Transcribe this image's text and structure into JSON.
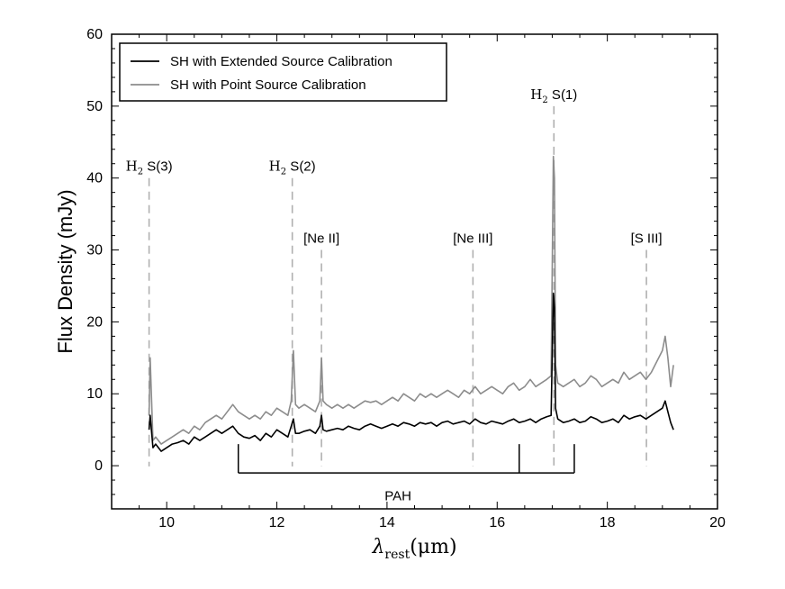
{
  "chart_data": {
    "type": "line",
    "title": "",
    "xlabel": {
      "main": "λ",
      "sub": "rest",
      "unit": "(μm)"
    },
    "ylabel": "Flux Density (mJy)",
    "xlim": [
      9,
      20
    ],
    "ylim": [
      -6,
      60
    ],
    "x_ticks": [
      10,
      12,
      14,
      16,
      18,
      20
    ],
    "y_ticks": [
      0,
      10,
      20,
      30,
      40,
      50,
      60
    ],
    "legend": {
      "placement": "top-left",
      "entries": [
        {
          "label": "SH with Extended Source Calibration",
          "color": "#000000"
        },
        {
          "label": "SH with Point Source Calibration",
          "color": "#8c8c8c"
        }
      ]
    },
    "series": [
      {
        "name": "SH with Extended Source Calibration",
        "color": "#000000",
        "x": [
          9.68,
          9.7,
          9.75,
          9.8,
          9.9,
          10.0,
          10.1,
          10.2,
          10.3,
          10.4,
          10.5,
          10.6,
          10.7,
          10.8,
          10.9,
          11.0,
          11.1,
          11.2,
          11.3,
          11.4,
          11.5,
          11.6,
          11.7,
          11.8,
          11.9,
          12.0,
          12.1,
          12.2,
          12.26,
          12.3,
          12.34,
          12.4,
          12.5,
          12.6,
          12.7,
          12.78,
          12.81,
          12.84,
          12.9,
          13.0,
          13.1,
          13.2,
          13.3,
          13.4,
          13.5,
          13.6,
          13.7,
          13.8,
          13.9,
          14.0,
          14.1,
          14.2,
          14.3,
          14.4,
          14.5,
          14.6,
          14.7,
          14.8,
          14.9,
          15.0,
          15.1,
          15.2,
          15.3,
          15.4,
          15.5,
          15.6,
          15.7,
          15.8,
          15.9,
          16.0,
          16.1,
          16.2,
          16.3,
          16.4,
          16.5,
          16.6,
          16.7,
          16.8,
          16.9,
          16.98,
          17.02,
          17.04,
          17.06,
          17.1,
          17.2,
          17.3,
          17.4,
          17.5,
          17.6,
          17.7,
          17.8,
          17.9,
          18.0,
          18.1,
          18.2,
          18.3,
          18.4,
          18.5,
          18.6,
          18.7,
          18.8,
          18.9,
          19.0,
          19.05,
          19.1,
          19.15,
          19.2
        ],
        "y": [
          5.0,
          7.0,
          2.5,
          3.0,
          2.0,
          2.5,
          3.0,
          3.2,
          3.5,
          3.0,
          4.0,
          3.5,
          4.0,
          4.5,
          5.0,
          4.5,
          5.0,
          5.5,
          4.5,
          4.0,
          3.8,
          4.2,
          3.5,
          4.5,
          4.0,
          5.0,
          4.5,
          4.0,
          5.5,
          6.5,
          4.5,
          4.5,
          4.8,
          5.0,
          4.5,
          5.5,
          7.0,
          5.0,
          4.8,
          5.0,
          5.2,
          5.0,
          5.5,
          5.2,
          5.0,
          5.5,
          5.8,
          5.5,
          5.2,
          5.5,
          5.8,
          5.5,
          6.0,
          5.8,
          5.5,
          6.0,
          5.8,
          6.0,
          5.5,
          6.0,
          6.2,
          5.8,
          6.0,
          6.2,
          5.8,
          6.5,
          6.0,
          5.8,
          6.2,
          6.0,
          5.8,
          6.2,
          6.5,
          6.0,
          6.2,
          6.5,
          6.0,
          6.5,
          6.8,
          7.0,
          24.0,
          22.0,
          8.0,
          6.5,
          6.0,
          6.2,
          6.5,
          6.0,
          6.2,
          6.8,
          6.5,
          6.0,
          6.2,
          6.5,
          6.0,
          7.0,
          6.5,
          6.8,
          7.0,
          6.5,
          7.0,
          7.5,
          8.0,
          9.0,
          7.5,
          6.0,
          5.0
        ]
      },
      {
        "name": "SH with Point Source Calibration",
        "color": "#8c8c8c",
        "x": [
          9.68,
          9.7,
          9.75,
          9.8,
          9.9,
          10.0,
          10.1,
          10.2,
          10.3,
          10.4,
          10.5,
          10.6,
          10.7,
          10.8,
          10.9,
          11.0,
          11.1,
          11.2,
          11.3,
          11.4,
          11.5,
          11.6,
          11.7,
          11.8,
          11.9,
          12.0,
          12.1,
          12.2,
          12.26,
          12.3,
          12.34,
          12.4,
          12.5,
          12.6,
          12.7,
          12.78,
          12.81,
          12.84,
          12.9,
          13.0,
          13.1,
          13.2,
          13.3,
          13.4,
          13.5,
          13.6,
          13.7,
          13.8,
          13.9,
          14.0,
          14.1,
          14.2,
          14.3,
          14.4,
          14.5,
          14.6,
          14.7,
          14.8,
          14.9,
          15.0,
          15.1,
          15.2,
          15.3,
          15.4,
          15.5,
          15.6,
          15.7,
          15.8,
          15.9,
          16.0,
          16.1,
          16.2,
          16.3,
          16.4,
          16.5,
          16.6,
          16.7,
          16.8,
          16.9,
          16.98,
          17.02,
          17.04,
          17.06,
          17.1,
          17.2,
          17.3,
          17.4,
          17.5,
          17.6,
          17.7,
          17.8,
          17.9,
          18.0,
          18.1,
          18.2,
          18.3,
          18.4,
          18.5,
          18.6,
          18.7,
          18.8,
          18.9,
          19.0,
          19.05,
          19.1,
          19.15,
          19.2
        ],
        "y": [
          7.0,
          15.0,
          3.5,
          4.0,
          3.0,
          3.5,
          4.0,
          4.5,
          5.0,
          4.5,
          5.5,
          5.0,
          6.0,
          6.5,
          7.0,
          6.5,
          7.5,
          8.5,
          7.5,
          7.0,
          6.5,
          7.0,
          6.5,
          7.5,
          7.0,
          8.0,
          7.5,
          7.0,
          9.0,
          16.0,
          8.5,
          8.0,
          8.5,
          8.0,
          7.5,
          9.0,
          15.0,
          9.0,
          8.5,
          8.0,
          8.5,
          8.0,
          8.5,
          8.0,
          8.5,
          9.0,
          8.8,
          9.0,
          8.5,
          9.0,
          9.5,
          9.0,
          10.0,
          9.5,
          9.0,
          10.0,
          9.5,
          10.0,
          9.5,
          10.0,
          10.5,
          10.0,
          9.5,
          10.5,
          10.0,
          11.0,
          10.0,
          10.5,
          11.0,
          10.5,
          10.0,
          11.0,
          11.5,
          10.5,
          11.0,
          12.0,
          11.0,
          11.5,
          12.0,
          12.5,
          43.0,
          40.0,
          14.0,
          11.5,
          11.0,
          11.5,
          12.0,
          11.0,
          11.5,
          12.5,
          12.0,
          11.0,
          11.5,
          12.0,
          11.5,
          13.0,
          12.0,
          12.5,
          13.0,
          12.0,
          13.0,
          14.5,
          16.0,
          18.0,
          15.0,
          11.0,
          14.0
        ]
      }
    ],
    "line_markers": [
      {
        "x": 9.68,
        "label_prefix": "H",
        "label_sub": "2",
        "label_suffix": " S(3)",
        "y_top": 40
      },
      {
        "x": 12.28,
        "label_prefix": "H",
        "label_sub": "2",
        "label_suffix": " S(2)",
        "y_top": 40
      },
      {
        "x": 12.81,
        "label": "[Ne II]",
        "y_top": 30
      },
      {
        "x": 15.56,
        "label": "[Ne III]",
        "y_top": 30
      },
      {
        "x": 17.03,
        "label_prefix": "H",
        "label_sub": "2",
        "label_suffix": " S(1)",
        "y_top": 50
      },
      {
        "x": 18.71,
        "label": "[S III]",
        "y_top": 30
      }
    ],
    "pah": {
      "label": "PAH",
      "y_bar": -1.0,
      "y_top": 3.0,
      "x_start": 11.3,
      "x_end": 17.4,
      "ticks": [
        11.3,
        16.4,
        17.4
      ],
      "label_x": 14.2
    }
  }
}
